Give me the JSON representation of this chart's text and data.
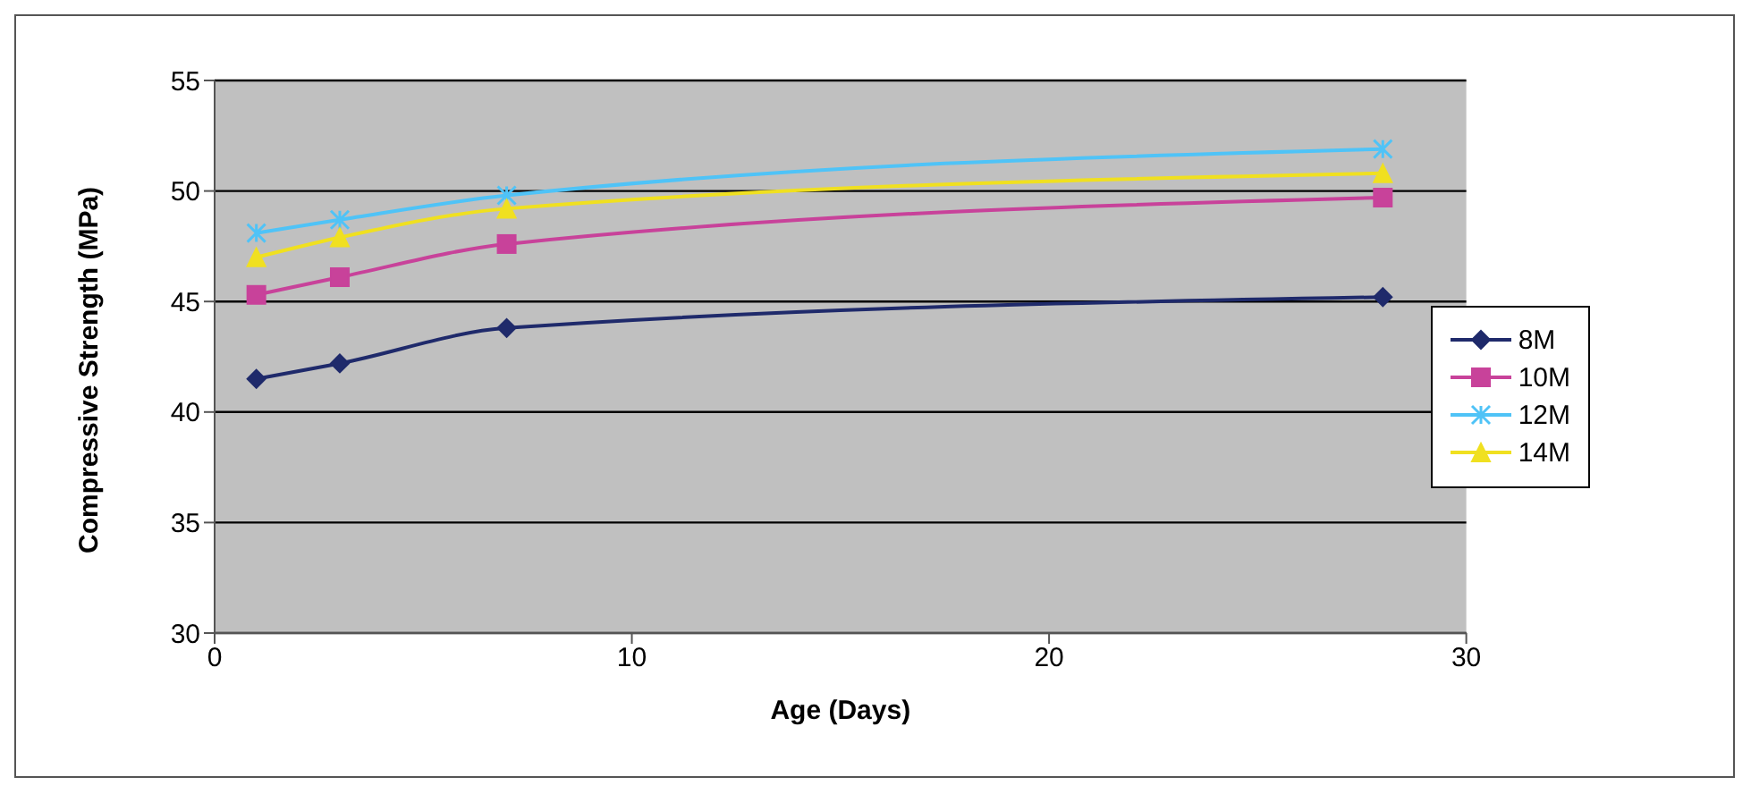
{
  "chart_data": {
    "type": "line",
    "xlabel": "Age (Days)",
    "ylabel": "Compressive Strength (MPa)",
    "x": [
      1,
      3,
      7,
      28
    ],
    "series": [
      {
        "name": "8M",
        "color": "#1f2a6b",
        "marker": "diamond",
        "values": [
          41.5,
          42.2,
          43.8,
          45.2
        ]
      },
      {
        "name": "10M",
        "color": "#c8429a",
        "marker": "square",
        "values": [
          45.3,
          46.1,
          47.6,
          49.7
        ]
      },
      {
        "name": "12M",
        "color": "#4fc3f7",
        "marker": "cross",
        "values": [
          48.1,
          48.7,
          49.8,
          51.9
        ]
      },
      {
        "name": "14M",
        "color": "#f0e020",
        "marker": "triangle",
        "values": [
          47.0,
          47.9,
          49.2,
          50.8
        ]
      }
    ],
    "xlim": [
      0,
      30
    ],
    "xticks": [
      0,
      10,
      20,
      30
    ],
    "ylim": [
      30,
      55
    ],
    "yticks": [
      30,
      35,
      40,
      45,
      50,
      55
    ],
    "grid": "y",
    "legend": "right",
    "line_style": "solid"
  }
}
